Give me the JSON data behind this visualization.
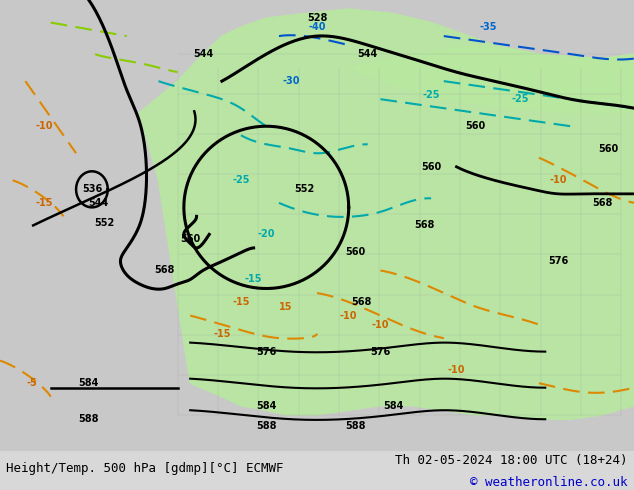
{
  "title_left": "Height/Temp. 500 hPa [gdmp][°C] ECMWF",
  "title_right": "Th 02-05-2024 18:00 UTC (18+24)",
  "copyright": "© weatheronline.co.uk",
  "bg_color": "#d0d0d0",
  "land_color": "#c8c8c8",
  "ocean_color": "#c8c8c8",
  "green_fill_color": "#b8e8a0",
  "fig_width": 6.34,
  "fig_height": 4.9,
  "dpi": 100,
  "bottom_bar_color": "#e8e8e8",
  "title_fontsize": 9.5,
  "copyright_color": "#0000cc"
}
